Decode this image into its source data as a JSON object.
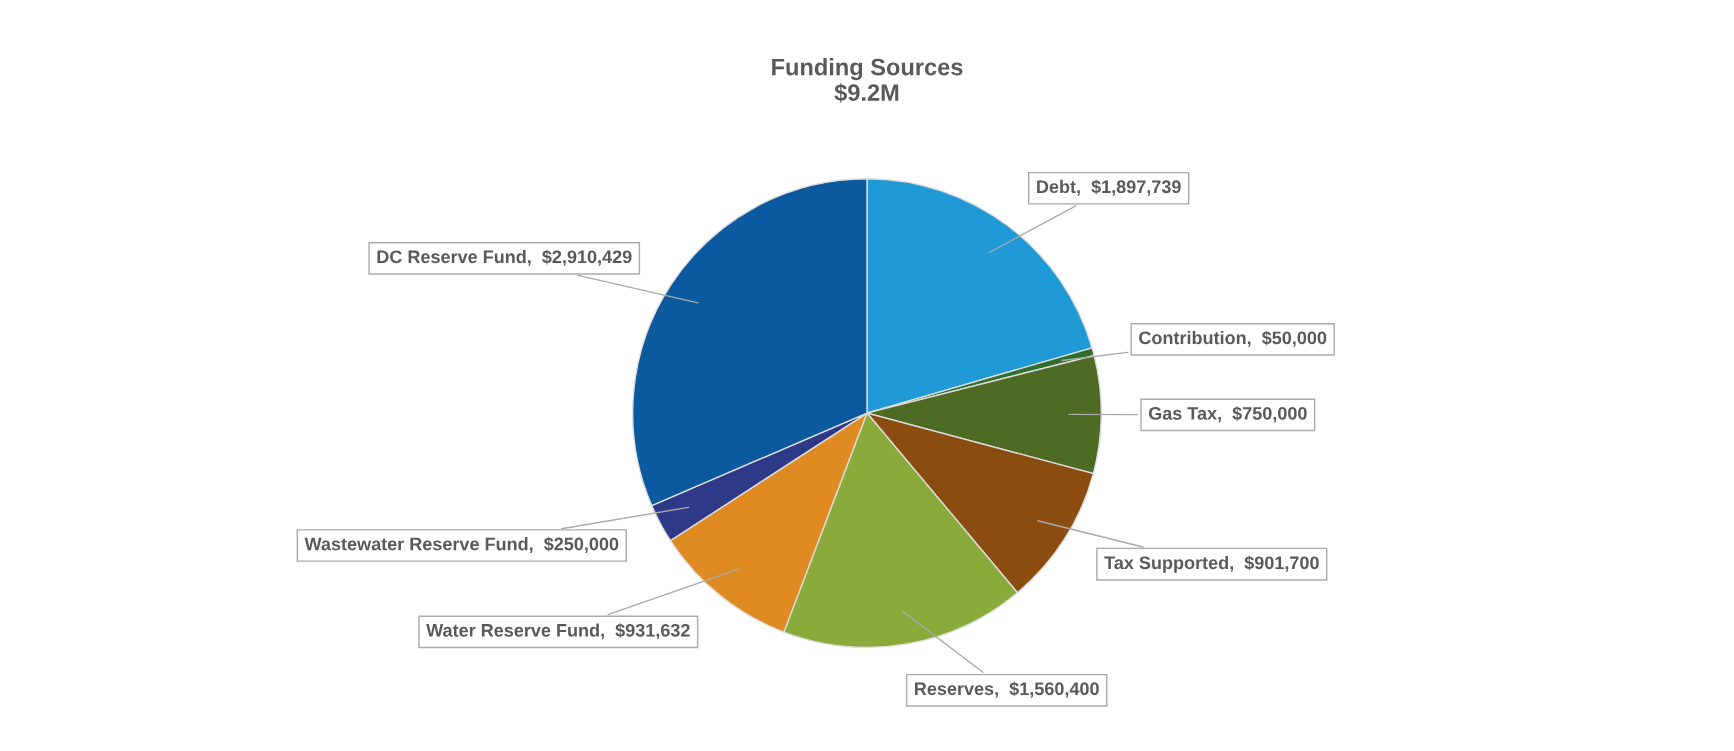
{
  "chart_data": {
    "type": "pie",
    "title": "Funding Sources\n$9.2M",
    "categories": [
      "Debt",
      "Contribution",
      "Gas Tax",
      "Tax Supported",
      "Reserves",
      "Water Reserve Fund",
      "Wastewater Reserve Fund",
      "DC Reserve Fund"
    ],
    "values": [
      1897739,
      50000,
      750000,
      901700,
      1560400,
      931632,
      250000,
      2910429
    ],
    "value_labels": [
      "$1,897,739",
      "$50,000",
      "$750,000",
      "$901,700",
      "$1,560,400",
      "$931,632",
      "$250,000",
      "$2,910,429"
    ],
    "colors": [
      "#1f9ad6",
      "#2f6e2f",
      "#4e6b23",
      "#8b4c0f",
      "#8aab3a",
      "#e08a22",
      "#2e3a87",
      "#0b5aa0"
    ],
    "legend": false
  }
}
